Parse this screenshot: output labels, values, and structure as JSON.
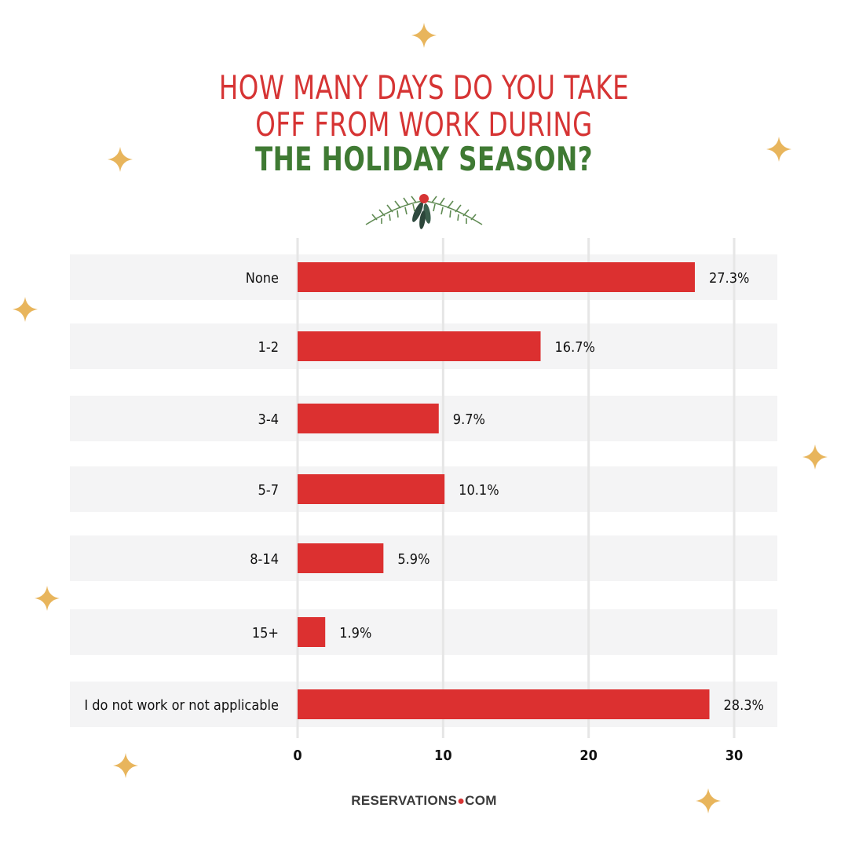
{
  "title": {
    "line1": "HOW MANY DAYS DO YOU TAKE",
    "line2": "OFF FROM WORK DURING",
    "line3": "THE HOLIDAY SEASON?"
  },
  "brand": {
    "left": "RESERVATIONS",
    "right": "COM"
  },
  "colors": {
    "bar": "#dc3030",
    "title_red": "#d63434",
    "title_green": "#3f7a33",
    "row_bg": "#f4f4f5",
    "sparkle": "#e8b55c"
  },
  "chart_data": {
    "type": "bar",
    "orientation": "horizontal",
    "categories": [
      "None",
      "1-2",
      "3-4",
      "5-7",
      "8-14",
      "15+",
      "I do not work or not applicable"
    ],
    "values": [
      27.3,
      16.7,
      9.7,
      10.1,
      5.9,
      1.9,
      28.3
    ],
    "value_labels": [
      "27.3%",
      "16.7%",
      "9.7%",
      "10.1%",
      "5.9%",
      "1.9%",
      "28.3%"
    ],
    "xticks": [
      0,
      10,
      20,
      30
    ],
    "xlim": [
      0,
      30
    ],
    "grid": true
  }
}
